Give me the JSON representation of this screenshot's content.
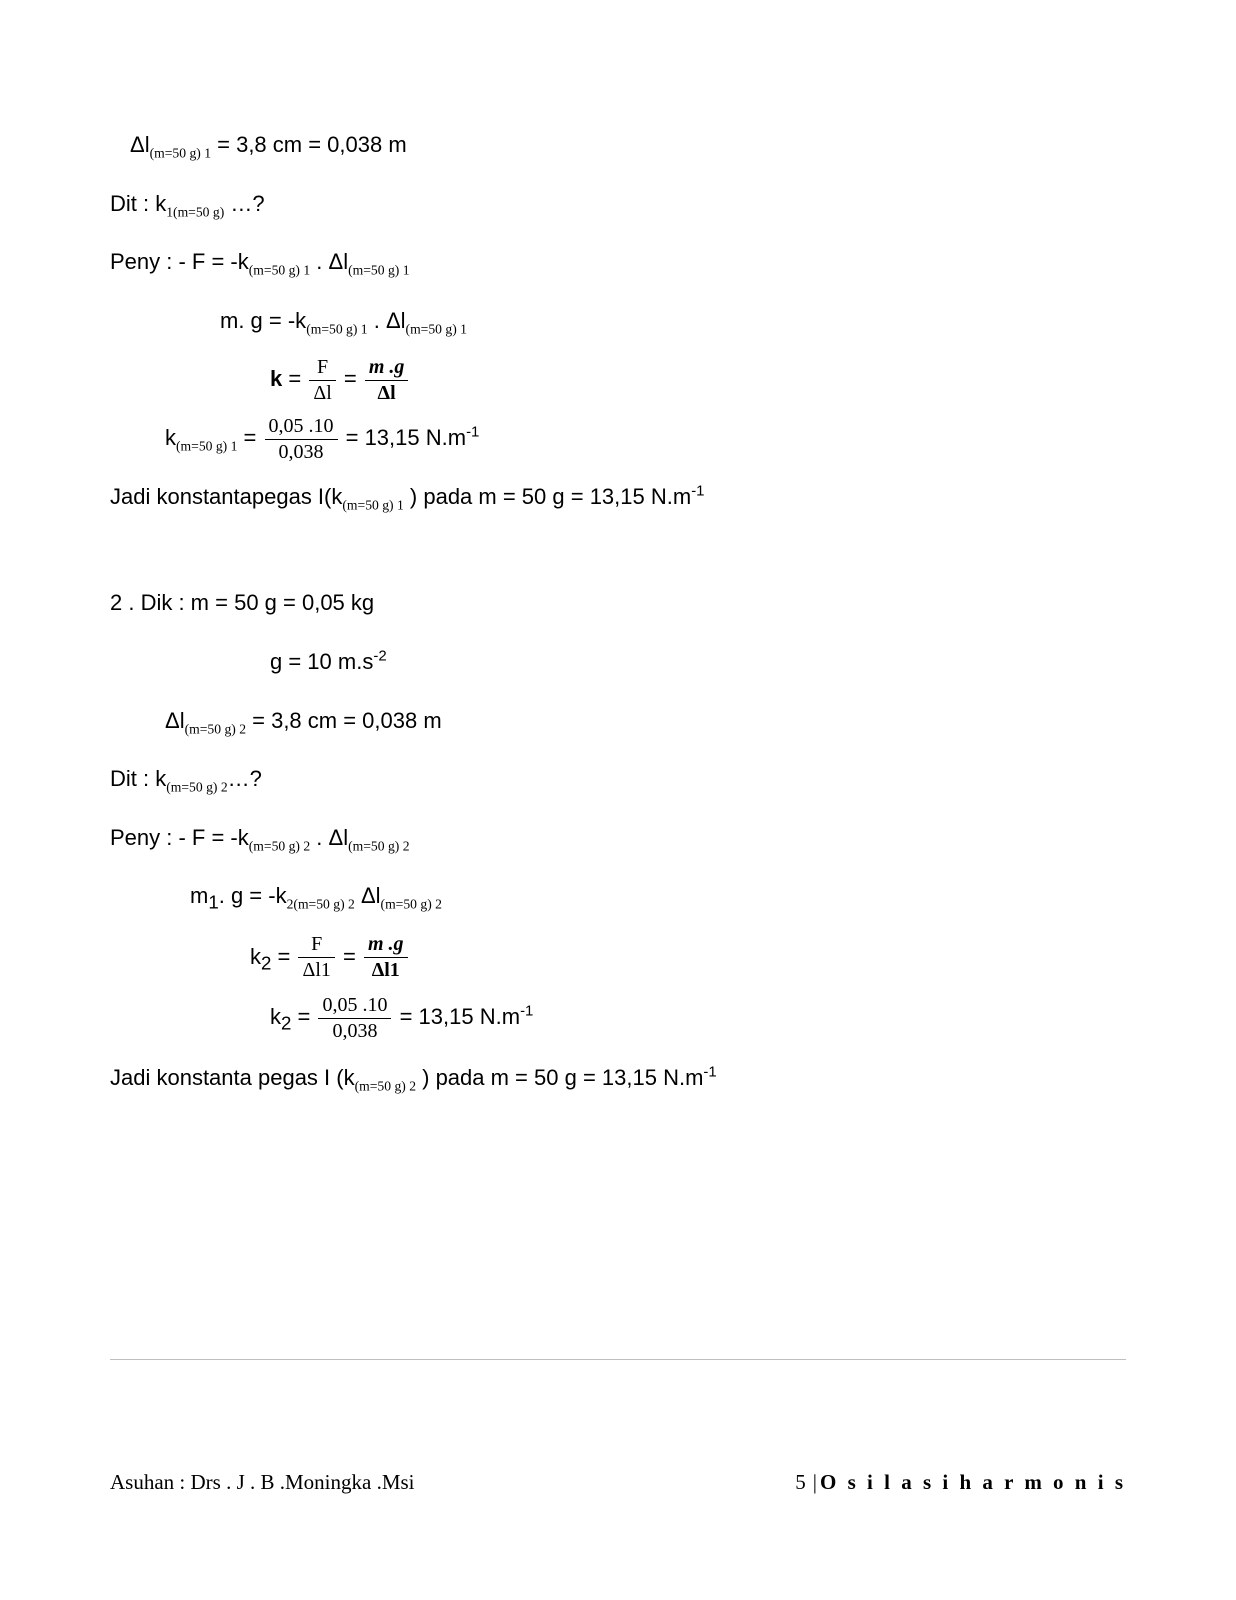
{
  "lines": {
    "l1_pre": "Δl",
    "l1_sub": "(m=50 g) 1",
    "l1_post": "  =  3,8 cm = 0,038 m",
    "l2_pre": "Dit : k",
    "l2_sub": "1(m=50 g)",
    "l2_post": "  …?",
    "l3_pre": "Peny : -    F = -k",
    "l3_sub1": "(m=50 g) 1",
    "l3_mid": " .  Δl",
    "l3_sub2": "(m=50 g) 1",
    "l4_pre": "m. g  = -k",
    "l4_sub1": "(m=50 g) 1",
    "l4_mid": " .  Δl",
    "l4_sub2": "(m=50 g) 1",
    "l5_k": "k",
    "l5_eq": "  =  ",
    "l5_f1n": "F",
    "l5_f1d": "Δl",
    "l5_eq2": " = ",
    "l5_f2n": "m .g",
    "l5_f2d": "Δl",
    "l6_pre": "k",
    "l6_sub": "(m=50 g) 1",
    "l6_eq": " = ",
    "l6_fn": "0,05 .10",
    "l6_fd": "0,038",
    "l6_post": " = 13,15  N.m",
    "l6_sup": "-1",
    "l7_pre": "Jadi konstantapegas I(k",
    "l7_sub": "(m=50 g) 1",
    "l7_mid": "  )  pada m = 50 g = 13,15 N.m",
    "l7_sup": "-1",
    "l8": "2 . Dik :      m = 50 g = 0,05 kg",
    "l9_pre": "g = 10 m.s",
    "l9_sup": "-2",
    "l10_pre": "Δl",
    "l10_sub": "(m=50 g) 2",
    "l10_post": "  =  3,8 cm = 0,038 m",
    "l11_pre": "Dit : k",
    "l11_sub": "(m=50 g) 2",
    "l11_post": "…?",
    "l12_pre": "Peny : -    F = -k",
    "l12_sub1": "(m=50 g) 2",
    "l12_mid": " . Δl",
    "l12_sub2": "(m=50 g) 2",
    "l13_pre": "m",
    "l13_sub0": "1",
    "l13_mid0": ". g  = -k",
    "l13_sub1": "2(m=50 g) 2",
    "l13_mid": "  Δl",
    "l13_sub2": "(m=50 g) 2",
    "l14_k": "k",
    "l14_ksub": "2",
    "l14_eq": "  =  ",
    "l14_f1n": "F",
    "l14_f1d": "Δl1",
    "l14_eq2": " = ",
    "l14_f2n": "m .g",
    "l14_f2d": "Δl1",
    "l15_k": "k",
    "l15_ksub": "2",
    "l15_eq": " = ",
    "l15_fn": "0,05 .10",
    "l15_fd": "0,038",
    "l15_post": " = 13,15 N.m",
    "l15_sup": "-1",
    "l16_pre": "Jadi konstanta pegas I (k",
    "l16_sub": "(m=50 g) 2",
    "l16_mid": "  )  pada m = 50 g = 13,15 N.m",
    "l16_sup": "-1"
  },
  "footer": {
    "left": "Asuhan : Drs . J . B .Moningka .Msi",
    "page_num": "5",
    "bar": "|",
    "title": "O s i l a s i   h a r m o n i s"
  },
  "colors": {
    "text": "#000000",
    "background": "#ffffff",
    "divider": "#bfbfbf"
  }
}
